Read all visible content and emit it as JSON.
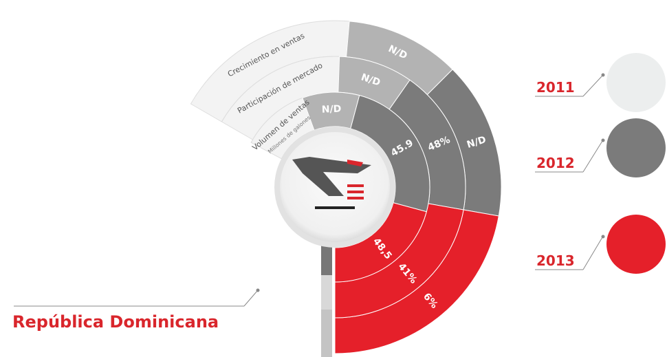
{
  "rings": [
    {
      "label": "Volumen de ventas",
      "sublabel": "Millones de galones",
      "values": [
        "N/D",
        "45.9",
        "48,5"
      ]
    },
    {
      "label": "Participación de mercado",
      "values": [
        "N/D",
        "48%",
        "41%"
      ]
    },
    {
      "label": "Crecimiento en ventas",
      "values": [
        "N/D",
        "N/D",
        "6%"
      ]
    }
  ],
  "years": [
    "2011",
    "2012",
    "2013"
  ],
  "country": "República Dominicana"
}
